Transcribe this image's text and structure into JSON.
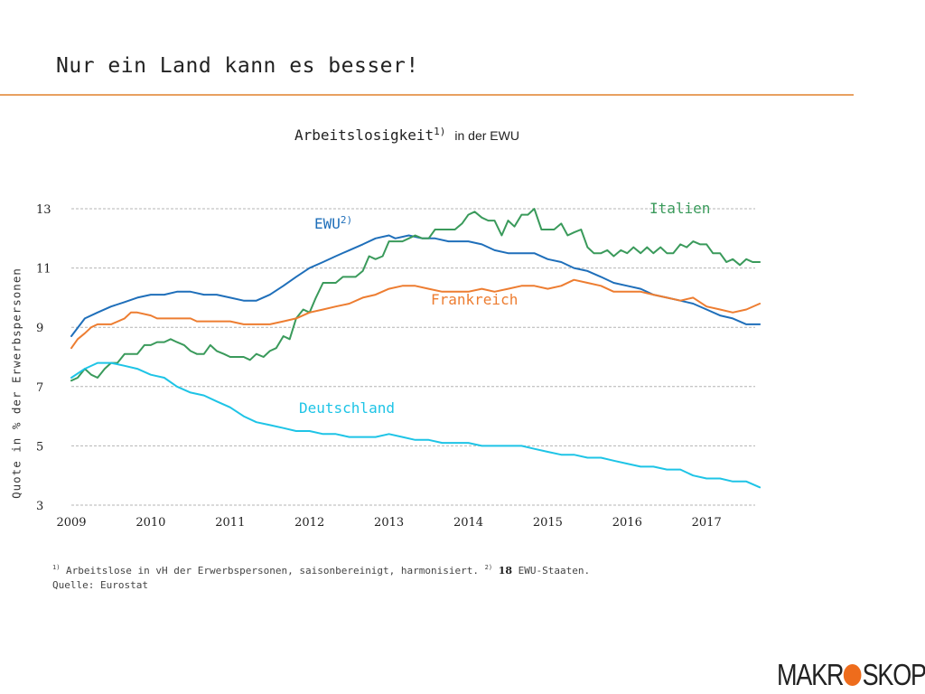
{
  "slide": {
    "title": "Nur ein Land kann es besser!",
    "chart_title_main": "Arbeitslosigkeit",
    "chart_title_sup": "1)",
    "chart_title_sub": "in der EWU",
    "ylabel": "Quote in % der Erwerbspersonen",
    "footnote": {
      "marker1": "1)",
      "text1": " Arbeitslose in vH der Erwerbspersonen, saisonbereinigt, harmonisiert. ",
      "marker2": "2)",
      "num": "18",
      "text2": " EWU-Staaten.",
      "source": "Quelle: Eurostat"
    },
    "logo": {
      "left": "MAKR",
      "right": "SKOP",
      "dot_color": "#ee6c1c"
    }
  },
  "chart_data": {
    "type": "line",
    "title": "Arbeitslosigkeit",
    "ylabel": "Quote in % der Erwerbspersonen",
    "xlim": [
      2009.0,
      2017.75
    ],
    "ylim": [
      3,
      13
    ],
    "yticks": [
      "3",
      "5",
      "7",
      "9",
      "11",
      "13"
    ],
    "xticks": [
      "2009",
      "2010",
      "2011",
      "2012",
      "2013",
      "2014",
      "2015",
      "2016",
      "2017"
    ],
    "grid": true,
    "series": [
      {
        "name": "EWU",
        "label_sup": "2)",
        "color": "#1f6fba",
        "x": [
          2009.0,
          2009.17,
          2009.33,
          2009.5,
          2009.67,
          2009.83,
          2010.0,
          2010.17,
          2010.33,
          2010.5,
          2010.67,
          2010.83,
          2011.0,
          2011.17,
          2011.33,
          2011.5,
          2011.67,
          2011.83,
          2012.0,
          2012.17,
          2012.33,
          2012.5,
          2012.67,
          2012.83,
          2013.0,
          2013.08,
          2013.25,
          2013.42,
          2013.58,
          2013.75,
          2014.0,
          2014.17,
          2014.33,
          2014.5,
          2014.67,
          2014.83,
          2015.0,
          2015.17,
          2015.33,
          2015.5,
          2015.67,
          2015.83,
          2016.0,
          2016.17,
          2016.33,
          2016.5,
          2016.67,
          2016.83,
          2017.0,
          2017.17,
          2017.33,
          2017.5,
          2017.67
        ],
        "values": [
          8.7,
          9.3,
          9.5,
          9.7,
          9.85,
          10.0,
          10.1,
          10.1,
          10.2,
          10.2,
          10.1,
          10.1,
          10.0,
          9.9,
          9.9,
          10.1,
          10.4,
          10.7,
          11.0,
          11.2,
          11.4,
          11.6,
          11.8,
          12.0,
          12.1,
          12.0,
          12.1,
          12.0,
          12.0,
          11.9,
          11.9,
          11.8,
          11.6,
          11.5,
          11.5,
          11.5,
          11.3,
          11.2,
          11.0,
          10.9,
          10.7,
          10.5,
          10.4,
          10.3,
          10.1,
          10.0,
          9.9,
          9.8,
          9.6,
          9.4,
          9.3,
          9.1,
          9.1
        ]
      },
      {
        "name": "Italien",
        "color": "#3a9a5b",
        "x": [
          2009.0,
          2009.08,
          2009.17,
          2009.25,
          2009.33,
          2009.42,
          2009.5,
          2009.58,
          2009.67,
          2009.75,
          2009.83,
          2009.92,
          2010.0,
          2010.08,
          2010.17,
          2010.25,
          2010.33,
          2010.42,
          2010.5,
          2010.58,
          2010.67,
          2010.75,
          2010.83,
          2010.92,
          2011.0,
          2011.08,
          2011.17,
          2011.25,
          2011.33,
          2011.42,
          2011.5,
          2011.58,
          2011.67,
          2011.75,
          2011.83,
          2011.92,
          2012.0,
          2012.08,
          2012.17,
          2012.25,
          2012.33,
          2012.42,
          2012.5,
          2012.58,
          2012.67,
          2012.75,
          2012.83,
          2012.92,
          2013.0,
          2013.08,
          2013.17,
          2013.25,
          2013.33,
          2013.42,
          2013.5,
          2013.58,
          2013.67,
          2013.75,
          2013.83,
          2013.92,
          2014.0,
          2014.08,
          2014.17,
          2014.25,
          2014.33,
          2014.42,
          2014.5,
          2014.58,
          2014.67,
          2014.75,
          2014.83,
          2014.92,
          2015.0,
          2015.08,
          2015.17,
          2015.25,
          2015.33,
          2015.42,
          2015.5,
          2015.58,
          2015.67,
          2015.75,
          2015.83,
          2015.92,
          2016.0,
          2016.08,
          2016.17,
          2016.25,
          2016.33,
          2016.42,
          2016.5,
          2016.58,
          2016.67,
          2016.75,
          2016.83,
          2016.92,
          2017.0,
          2017.08,
          2017.17,
          2017.25,
          2017.33,
          2017.42,
          2017.5,
          2017.58,
          2017.67
        ],
        "values": [
          7.2,
          7.3,
          7.6,
          7.4,
          7.3,
          7.6,
          7.8,
          7.8,
          8.1,
          8.1,
          8.1,
          8.4,
          8.4,
          8.5,
          8.5,
          8.6,
          8.5,
          8.4,
          8.2,
          8.1,
          8.1,
          8.4,
          8.2,
          8.1,
          8.0,
          8.0,
          8.0,
          7.9,
          8.1,
          8.0,
          8.2,
          8.3,
          8.7,
          8.6,
          9.3,
          9.6,
          9.5,
          10.0,
          10.5,
          10.5,
          10.5,
          10.7,
          10.7,
          10.7,
          10.9,
          11.4,
          11.3,
          11.4,
          11.9,
          11.9,
          11.9,
          12.0,
          12.1,
          12.0,
          12.0,
          12.3,
          12.3,
          12.3,
          12.3,
          12.5,
          12.8,
          12.9,
          12.7,
          12.6,
          12.6,
          12.1,
          12.6,
          12.4,
          12.8,
          12.8,
          13.0,
          12.3,
          12.3,
          12.3,
          12.5,
          12.1,
          12.2,
          12.3,
          11.7,
          11.5,
          11.5,
          11.6,
          11.4,
          11.6,
          11.5,
          11.7,
          11.5,
          11.7,
          11.5,
          11.7,
          11.5,
          11.5,
          11.8,
          11.7,
          11.9,
          11.8,
          11.8,
          11.5,
          11.5,
          11.2,
          11.3,
          11.1,
          11.3,
          11.2,
          11.2
        ]
      },
      {
        "name": "Frankreich",
        "color": "#ed7d31",
        "x": [
          2009.0,
          2009.08,
          2009.17,
          2009.25,
          2009.33,
          2009.5,
          2009.67,
          2009.75,
          2009.83,
          2010.0,
          2010.08,
          2010.25,
          2010.5,
          2010.58,
          2010.83,
          2011.0,
          2011.17,
          2011.33,
          2011.5,
          2011.67,
          2011.83,
          2012.0,
          2012.17,
          2012.33,
          2012.5,
          2012.67,
          2012.83,
          2013.0,
          2013.17,
          2013.33,
          2013.5,
          2013.67,
          2013.83,
          2014.0,
          2014.17,
          2014.33,
          2014.5,
          2014.67,
          2014.83,
          2015.0,
          2015.17,
          2015.33,
          2015.5,
          2015.67,
          2015.83,
          2016.0,
          2016.17,
          2016.33,
          2016.5,
          2016.67,
          2016.83,
          2017.0,
          2017.17,
          2017.33,
          2017.5,
          2017.67
        ],
        "values": [
          8.3,
          8.6,
          8.8,
          9.0,
          9.1,
          9.1,
          9.3,
          9.5,
          9.5,
          9.4,
          9.3,
          9.3,
          9.3,
          9.2,
          9.2,
          9.2,
          9.1,
          9.1,
          9.1,
          9.2,
          9.3,
          9.5,
          9.6,
          9.7,
          9.8,
          10.0,
          10.1,
          10.3,
          10.4,
          10.4,
          10.3,
          10.2,
          10.2,
          10.2,
          10.3,
          10.2,
          10.3,
          10.4,
          10.4,
          10.3,
          10.4,
          10.6,
          10.5,
          10.4,
          10.2,
          10.2,
          10.2,
          10.1,
          10.0,
          9.9,
          10.0,
          9.7,
          9.6,
          9.5,
          9.6,
          9.8
        ]
      },
      {
        "name": "Deutschland",
        "color": "#1ec4e6",
        "x": [
          2009.0,
          2009.17,
          2009.33,
          2009.5,
          2009.67,
          2009.83,
          2010.0,
          2010.17,
          2010.33,
          2010.5,
          2010.67,
          2010.83,
          2011.0,
          2011.17,
          2011.33,
          2011.5,
          2011.67,
          2011.83,
          2012.0,
          2012.17,
          2012.33,
          2012.5,
          2012.67,
          2012.83,
          2013.0,
          2013.17,
          2013.33,
          2013.5,
          2013.67,
          2013.83,
          2014.0,
          2014.17,
          2014.33,
          2014.5,
          2014.67,
          2014.83,
          2015.0,
          2015.17,
          2015.33,
          2015.5,
          2015.67,
          2015.83,
          2016.0,
          2016.17,
          2016.33,
          2016.5,
          2016.67,
          2016.83,
          2017.0,
          2017.17,
          2017.33,
          2017.5,
          2017.67
        ],
        "values": [
          7.3,
          7.6,
          7.8,
          7.8,
          7.7,
          7.6,
          7.4,
          7.3,
          7.0,
          6.8,
          6.7,
          6.5,
          6.3,
          6.0,
          5.8,
          5.7,
          5.6,
          5.5,
          5.5,
          5.4,
          5.4,
          5.3,
          5.3,
          5.3,
          5.4,
          5.3,
          5.2,
          5.2,
          5.1,
          5.1,
          5.1,
          5.0,
          5.0,
          5.0,
          5.0,
          4.9,
          4.8,
          4.7,
          4.7,
          4.6,
          4.6,
          4.5,
          4.4,
          4.3,
          4.3,
          4.2,
          4.2,
          4.0,
          3.9,
          3.9,
          3.8,
          3.8,
          3.6
        ]
      }
    ]
  }
}
